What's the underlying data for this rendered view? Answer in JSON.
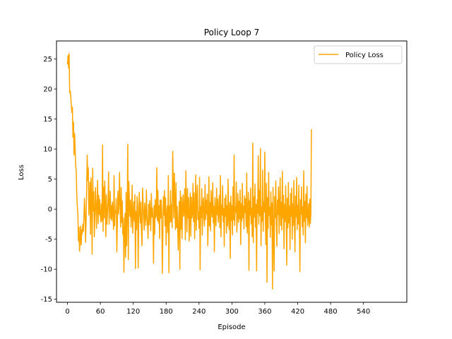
{
  "chart_data": {
    "type": "line",
    "title": "Policy Loop 7",
    "xlabel": "Episode",
    "ylabel": "Loss",
    "xlim": [
      -20,
      619
    ],
    "ylim": [
      -15.5,
      28
    ],
    "xticks": [
      0,
      60,
      120,
      180,
      240,
      300,
      360,
      420,
      480,
      540
    ],
    "yticks": [
      -15,
      -10,
      -5,
      0,
      5,
      10,
      15,
      20,
      25
    ],
    "grid": false,
    "legend_position": "top-right",
    "series": [
      {
        "name": "Policy Loss",
        "color": "#ffa500",
        "x_start": 0,
        "x_step": 1,
        "values": [
          24.1,
          25.6,
          23.5,
          25.9,
          19.4,
          19.7,
          18.8,
          17.3,
          16.1,
          17.0,
          12.0,
          14.5,
          9.0,
          12.6,
          10.1,
          7.2,
          6.3,
          2.4,
          0.4,
          -0.8,
          -5.3,
          -3.0,
          -7.0,
          -4.9,
          -2.8,
          -6.0,
          -3.4,
          -4.1,
          -2.5,
          -3.7,
          -1.2,
          1.8,
          -0.6,
          -5.5,
          -2.0,
          3.3,
          9.0,
          4.8,
          6.9,
          -1.0,
          1.7,
          4.5,
          -4.2,
          5.2,
          1.8,
          -7.5,
          6.8,
          -0.3,
          2.9,
          -4.6,
          -1.2,
          3.6,
          0.8,
          -3.2,
          1.1,
          4.8,
          -2.4,
          2.3,
          -0.9,
          1.6,
          -1.1,
          -2.2,
          0.9,
          -1.9,
          10.7,
          -3.7,
          3.7,
          -1.5,
          4.7,
          0.8,
          -4.6,
          2.4,
          -2.5,
          -0.7,
          1.2,
          6.2,
          -2.5,
          0.2,
          3.0,
          -1.6,
          0.6,
          -1.9,
          1.2,
          -0.4,
          -3.4,
          5.6,
          -2.8,
          -0.3,
          -0.6,
          1.8,
          -7.1,
          -2.6,
          3.0,
          -0.8,
          1.0,
          6.1,
          0.4,
          -3.0,
          3.6,
          -2.2,
          1.4,
          -4.2,
          -1.5,
          -10.5,
          -3.7,
          -0.7,
          -8.0,
          2.8,
          -6.1,
          -0.5,
          10.8,
          -8.4,
          4.6,
          0.9,
          -1.2,
          1.5,
          -3.0,
          -0.7,
          4.0,
          -4.0,
          -1.3,
          1.2,
          -2.0,
          2.4,
          -9.9,
          -0.4,
          -3.4,
          2.1,
          0.6,
          -9.8,
          -1.9,
          2.8,
          -0.4,
          -2.3,
          1.2,
          -3.8,
          -6.1,
          3.5,
          1.0,
          -1.4,
          -3.5,
          1.0,
          -0.9,
          -2.7,
          3.2,
          -1.0,
          -2.5,
          -4.9,
          0.8,
          -2.6,
          1.4,
          -0.8,
          -3.6,
          2.6,
          -1.3,
          0.2,
          -1.6,
          -9.0,
          0.6,
          -4.2,
          1.6,
          -1.4,
          -1.0,
          6.9,
          -1.9,
          3.1,
          -2.3,
          0.6,
          -4.9,
          1.5,
          -1.5,
          1.5,
          -0.6,
          -10.7,
          -4.5,
          2.1,
          -1.0,
          3.1,
          -2.8,
          1.9,
          -6.0,
          -0.9,
          0.5,
          -3.9,
          5.6,
          -10.6,
          0.5,
          -2.2,
          3.1,
          -2.1,
          0.8,
          -3.1,
          9.6,
          3.5,
          -1.5,
          6.0,
          1.1,
          -3.4,
          4.4,
          -3.1,
          0.5,
          -2.5,
          -6.8,
          -1.7,
          1.3,
          -10.0,
          3.0,
          -3.3,
          2.0,
          -4.9,
          0.6,
          2.4,
          -1.2,
          -0.2,
          3.4,
          -5.1,
          6.4,
          0.4,
          -3.8,
          3.4,
          -1.5,
          1.9,
          -5.3,
          -1.3,
          2.7,
          -4.5,
          2.0,
          -1.5,
          -0.7,
          4.3,
          -2.1,
          2.7,
          -4.9,
          -0.3,
          5.7,
          -3.5,
          1.8,
          4.0,
          -1.7,
          -0.5,
          -3.2,
          5.3,
          -10.1,
          0.4,
          -1.4,
          3.4,
          -4.3,
          0.8,
          1.9,
          -1.4,
          -2.8,
          4.1,
          -1.7,
          1.5,
          -0.8,
          2.5,
          -6.1,
          -1.9,
          5.4,
          -2.8,
          1.1,
          -3.6,
          3.1,
          -0.1,
          -1.3,
          4.4,
          -2.3,
          0.5,
          -7.1,
          1.9,
          -1.1,
          -2.8,
          3.5,
          -0.9,
          1.7,
          -2.2,
          -0.4,
          2.3,
          -3.1,
          5.6,
          -4.6,
          0.7,
          -1.0,
          3.9,
          -2.1,
          0.1,
          -6.2,
          1.8,
          -1.2,
          2.4,
          -4.0,
          0.6,
          -2.8,
          5.0,
          -1.5,
          -3.4,
          1.1,
          -8.2,
          2.2,
          -1.9,
          0.6,
          -4.3,
          3.7,
          -1.8,
          9.0,
          -2.7,
          0.3,
          -0.5,
          4.5,
          -3.8,
          -1.0,
          2.6,
          -2.2,
          1.3,
          -1.6,
          3.2,
          -5.9,
          0.9,
          -2.0,
          4.3,
          -1.4,
          0.5,
          -3.3,
          2.2,
          -0.6,
          1.7,
          -2.9,
          6.0,
          -4.0,
          -1.2,
          2.8,
          -10.2,
          1.4,
          -1.0,
          3.5,
          -2.4,
          0.2,
          -4.6,
          11.0,
          -5.6,
          2.0,
          -1.3,
          4.2,
          -3.0,
          0.8,
          -10.3,
          1.6,
          -0.7,
          8.9,
          -2.5,
          3.1,
          -1.1,
          10.1,
          -6.1,
          0.4,
          -2.0,
          6.5,
          -3.7,
          1.2,
          -0.5,
          9.5,
          -1.7,
          -5.9,
          4.3,
          -12.2,
          1.9,
          -3.2,
          6.1,
          -1.1,
          0.3,
          -4.7,
          2.9,
          -2.6,
          1.0,
          -13.3,
          3.6,
          -3.9,
          -10.3,
          2.1,
          -1.4,
          4.7,
          -2.2,
          -6.2,
          1.5,
          -0.9,
          3.7,
          -4.1,
          0.6,
          5.2,
          -2.7,
          1.1,
          -3.5,
          6.3,
          -1.5,
          2.3,
          -6.6,
          0.8,
          -2.1,
          3.9,
          -1.0,
          -9.3,
          1.8,
          -3.1,
          4.4,
          -2.3,
          0.5,
          -6.7,
          2.6,
          -1.2,
          3.5,
          -5.0,
          0.9,
          -2.7,
          4.8,
          -1.6,
          -7.1,
          2.2,
          -1.3,
          5.3,
          -3.4,
          0.7,
          -2.5,
          4.0,
          -1.8,
          -10.4,
          1.6,
          -0.8,
          3.7,
          -2.9,
          0.4,
          -4.3,
          6.4,
          -2.0,
          1.3,
          -5.6,
          2.5,
          -1.4,
          3.8,
          -2.7,
          -1.2,
          0.9,
          -3.0,
          1.7,
          -2.4,
          -0.8,
          13.3
        ]
      }
    ]
  }
}
